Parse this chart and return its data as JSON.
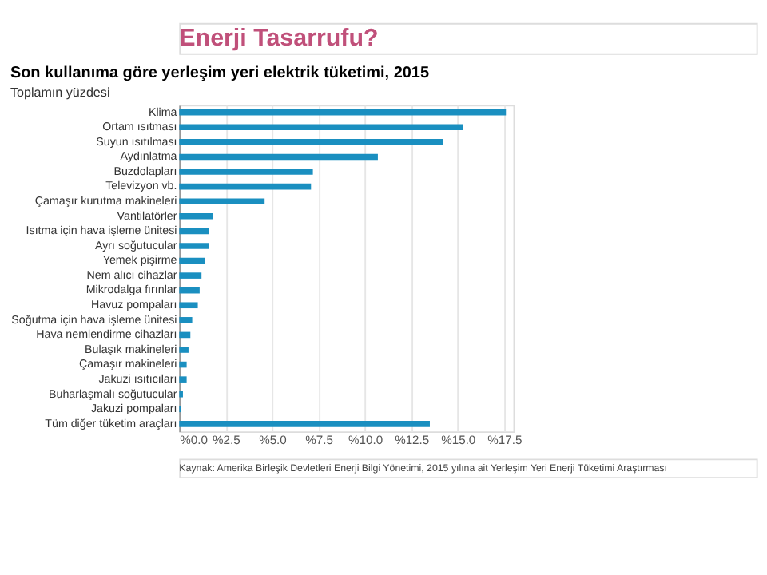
{
  "chart_data": {
    "type": "bar",
    "orientation": "horizontal",
    "title": "Son kullanıma göre yerleşim yeri elektrik tüketimi, 2015",
    "subtitle": "Toplamın yüzdesi",
    "annotations": [
      "Enerji Tasarrufu?",
      "Kaynak: Amerika Birleşik Devletleri Enerji Bilgi Yönetimi, 2015 yılına ait Yerleşim Yeri Enerji Tüketimi Araştırması"
    ],
    "categories": [
      "Klima",
      "Ortam ısıtması",
      "Suyun ısıtılması",
      "Aydınlatma",
      "Buzdolapları",
      "Televizyon vb.",
      "Çamaşır kurutma makineleri",
      "Vantilatörler",
      "Isıtma için hava işleme ünitesi",
      "Ayrı soğutucular",
      "Yemek pişirme",
      "Nem alıcı cihazlar",
      "Mikrodalga fırınlar",
      "Havuz pompaları",
      "Soğutma için hava işleme ünitesi",
      "Hava nemlendirme cihazları",
      "Bulaşık makineleri",
      "Çamaşır makineleri",
      "Jakuzi ısıtıcıları",
      "Buharlaşmalı soğutucular",
      "Jakuzi pompaları",
      "Tüm diğer tüketim araçları"
    ],
    "values": [
      17.6,
      15.3,
      14.2,
      10.7,
      7.2,
      7.1,
      4.6,
      1.8,
      1.6,
      1.6,
      1.4,
      1.2,
      1.1,
      1.0,
      0.7,
      0.6,
      0.5,
      0.4,
      0.4,
      0.2,
      0.1,
      13.5
    ],
    "color": "#1a8fc0",
    "xlim": [
      0,
      18
    ],
    "xticks": [
      {
        "value": 0,
        "label": "%0.0"
      },
      {
        "value": 2.5,
        "label": "%2.5"
      },
      {
        "value": 5,
        "label": "%5.0"
      },
      {
        "value": 7.5,
        "label": "%7.5"
      },
      {
        "value": 10,
        "label": "%10.0"
      },
      {
        "value": 12.5,
        "label": "%12.5"
      },
      {
        "value": 15,
        "label": "%15.0"
      },
      {
        "value": 17.5,
        "label": "%17.5"
      }
    ],
    "grid": "x"
  }
}
